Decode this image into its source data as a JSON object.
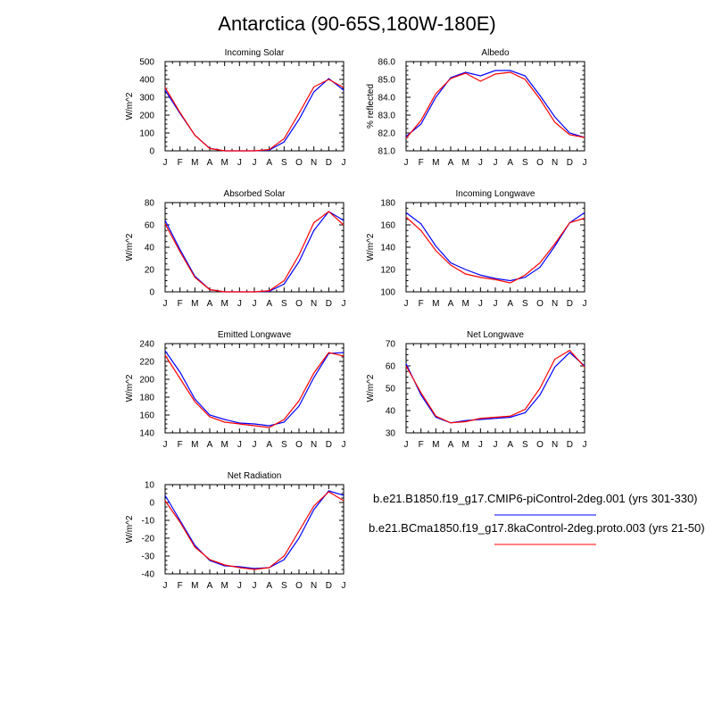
{
  "page": {
    "title": "Antarctica (90-65S,180W-180E)"
  },
  "colors": {
    "series1": "#0000ff",
    "series2": "#ff0000",
    "axes": "#000000"
  },
  "chart_data": [
    {
      "type": "line",
      "title": "Incoming Solar",
      "ylabel": "W/m^2",
      "x": [
        "J",
        "F",
        "M",
        "A",
        "M",
        "J",
        "J",
        "A",
        "S",
        "O",
        "N",
        "D",
        "J"
      ],
      "ylim": [
        0,
        500
      ],
      "yticks": [
        0,
        100,
        200,
        300,
        400,
        500
      ],
      "series": [
        {
          "values": [
            340,
            210,
            88,
            14,
            0,
            0,
            0,
            4,
            50,
            175,
            330,
            405,
            340
          ]
        },
        {
          "values": [
            355,
            215,
            87,
            13,
            0,
            0,
            0,
            7,
            68,
            210,
            358,
            400,
            355
          ]
        }
      ]
    },
    {
      "type": "line",
      "title": "Albedo",
      "ylabel": "% reflected",
      "x": [
        "J",
        "F",
        "M",
        "A",
        "M",
        "J",
        "J",
        "A",
        "S",
        "O",
        "N",
        "D",
        "J"
      ],
      "ylim": [
        81.0,
        86.0
      ],
      "yticks": [
        "81.0",
        "82.0",
        "83.0",
        "84.0",
        "85.0",
        "86.0"
      ],
      "series": [
        {
          "values": [
            81.8,
            82.5,
            84.0,
            85.1,
            85.4,
            85.2,
            85.5,
            85.5,
            85.2,
            84.1,
            82.9,
            82.0,
            81.75
          ]
        },
        {
          "values": [
            81.7,
            82.7,
            84.2,
            85.05,
            85.35,
            84.9,
            85.3,
            85.4,
            85.0,
            83.9,
            82.6,
            81.9,
            81.75
          ]
        }
      ]
    },
    {
      "type": "line",
      "title": "Absorbed Solar",
      "ylabel": "W/m^2",
      "x": [
        "J",
        "F",
        "M",
        "A",
        "M",
        "J",
        "J",
        "A",
        "S",
        "O",
        "N",
        "D",
        "J"
      ],
      "ylim": [
        0,
        80
      ],
      "yticks": [
        0,
        20,
        40,
        60,
        80
      ],
      "series": [
        {
          "values": [
            64,
            38,
            14,
            2,
            0,
            0,
            0,
            0.5,
            7,
            27,
            55,
            72,
            64
          ]
        },
        {
          "values": [
            61,
            36,
            13,
            2,
            0,
            0,
            0,
            1,
            10,
            33,
            62,
            72,
            60
          ]
        }
      ]
    },
    {
      "type": "line",
      "title": "Incoming Longwave",
      "ylabel": "W/m^2",
      "x": [
        "J",
        "F",
        "M",
        "A",
        "M",
        "J",
        "J",
        "A",
        "S",
        "O",
        "N",
        "D",
        "J"
      ],
      "ylim": [
        100,
        180
      ],
      "yticks": [
        100,
        120,
        140,
        160,
        180
      ],
      "series": [
        {
          "values": [
            171,
            161,
            141,
            126,
            120,
            115,
            112,
            110,
            113,
            122,
            141,
            162,
            171
          ]
        },
        {
          "values": [
            167,
            155,
            137,
            124,
            116,
            113,
            111,
            108,
            115,
            126,
            143,
            162,
            166
          ]
        }
      ]
    },
    {
      "type": "line",
      "title": "Emitted Longwave",
      "ylabel": "W/m^2",
      "x": [
        "J",
        "F",
        "M",
        "A",
        "M",
        "J",
        "J",
        "A",
        "S",
        "O",
        "N",
        "D",
        "J"
      ],
      "ylim": [
        140,
        240
      ],
      "yticks": [
        140,
        160,
        180,
        200,
        220,
        240
      ],
      "series": [
        {
          "values": [
            232,
            208,
            178,
            160,
            155,
            151,
            150,
            148,
            152,
            170,
            202,
            229,
            230
          ]
        },
        {
          "values": [
            227,
            201,
            175,
            158,
            152,
            150,
            148,
            146,
            155,
            176,
            207,
            230,
            226
          ]
        }
      ]
    },
    {
      "type": "line",
      "title": "Net Longwave",
      "ylabel": "W/m^2",
      "x": [
        "J",
        "F",
        "M",
        "A",
        "M",
        "J",
        "J",
        "A",
        "S",
        "O",
        "N",
        "D",
        "J"
      ],
      "ylim": [
        30,
        70
      ],
      "yticks": [
        30,
        40,
        50,
        60,
        70
      ],
      "series": [
        {
          "values": [
            61,
            47,
            37,
            34.5,
            35.5,
            36,
            36.5,
            37,
            39,
            47,
            59.5,
            66,
            60
          ]
        },
        {
          "values": [
            60,
            48,
            37.5,
            34.5,
            35,
            36.5,
            37,
            37.5,
            40.5,
            50,
            63,
            67,
            59.5
          ]
        }
      ]
    },
    {
      "type": "line",
      "title": "Net Radiation",
      "ylabel": "W/m^2",
      "x": [
        "J",
        "F",
        "M",
        "A",
        "M",
        "J",
        "J",
        "A",
        "S",
        "O",
        "N",
        "D",
        "J"
      ],
      "ylim": [
        -40,
        10
      ],
      "yticks": [
        -40,
        -30,
        -20,
        -10,
        0,
        10
      ],
      "series": [
        {
          "values": [
            4,
            -10,
            -24,
            -32.5,
            -35.5,
            -36,
            -37,
            -36.5,
            -32,
            -20,
            -4,
            6.5,
            4
          ]
        },
        {
          "values": [
            1,
            -11,
            -25,
            -32,
            -35,
            -36.5,
            -37.5,
            -36.5,
            -30,
            -16,
            -2,
            6,
            1
          ]
        }
      ]
    }
  ],
  "legend": {
    "items": [
      {
        "label": "b.e21.B1850.f19_g17.CMIP6-piControl-2deg.001 (yrs 301-330)",
        "color": "#0000ff"
      },
      {
        "label": "b.e21.BCma1850.f19_g17.8kaControl-2deg.proto.003 (yrs 21-50)",
        "color": "#ff0000"
      }
    ]
  }
}
